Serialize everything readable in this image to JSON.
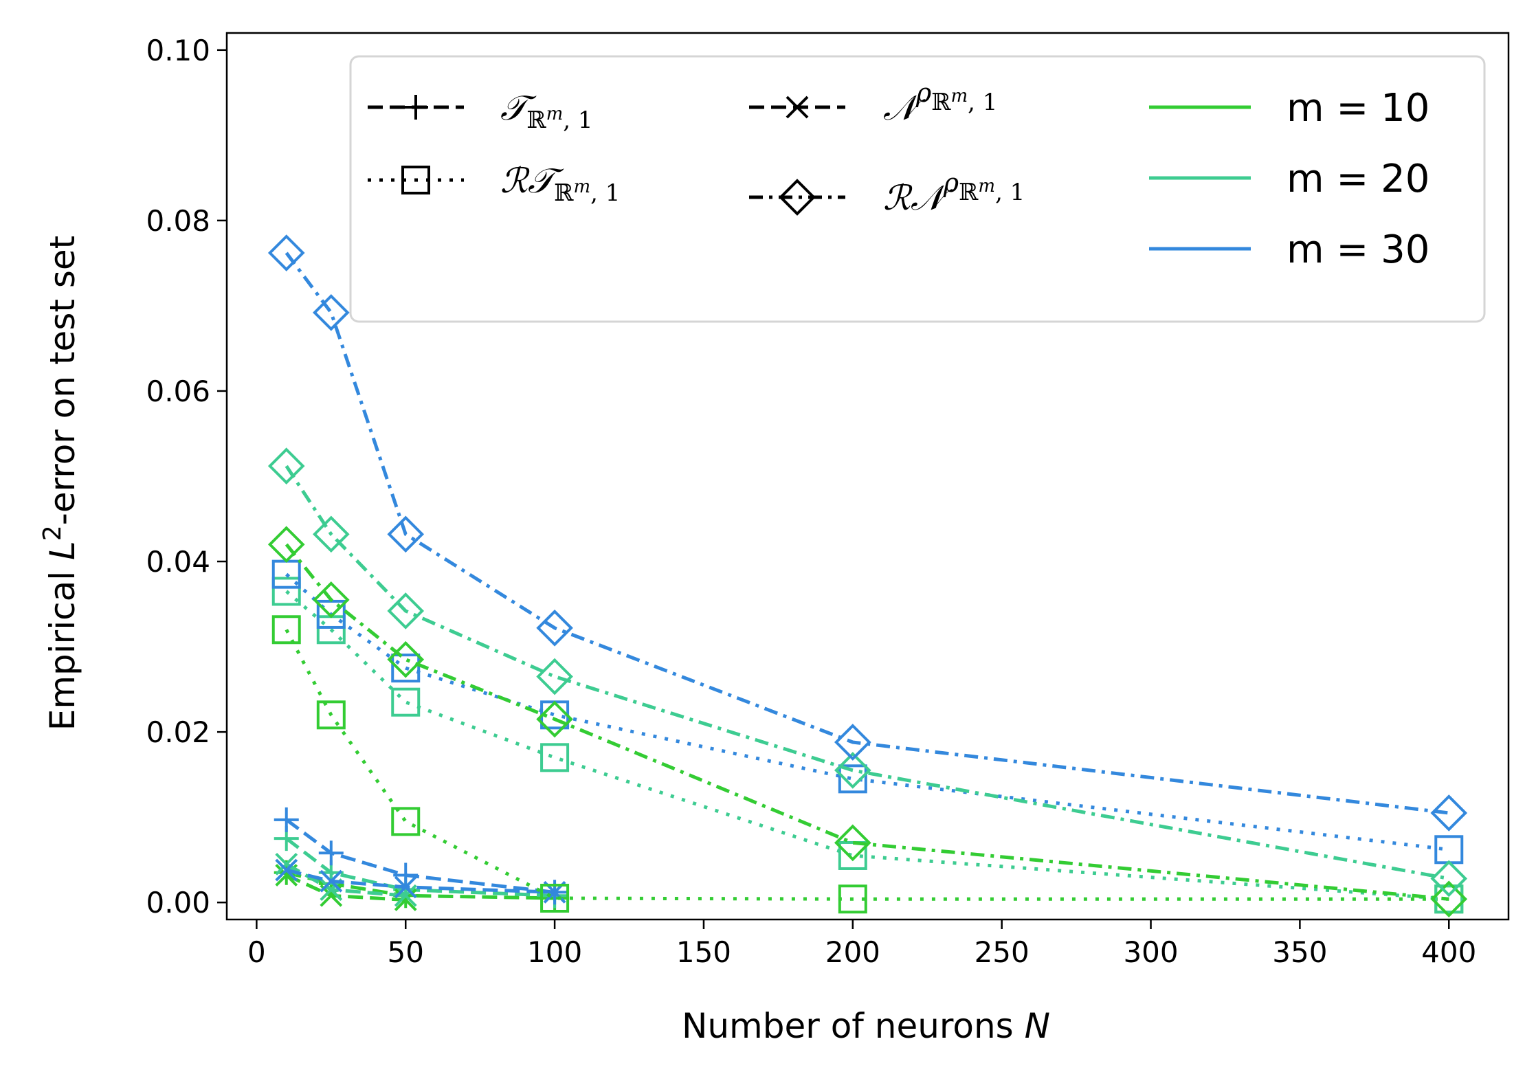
{
  "chart_data": {
    "type": "line",
    "xlabel": "Number of neurons",
    "xlabel_var": "N",
    "ylabel_pre": "Empirical ",
    "ylabel_var": "L",
    "ylabel_sup": "2",
    "ylabel_post": "-error on test set",
    "xlim": [
      -10,
      420
    ],
    "ylim": [
      -0.002,
      0.102
    ],
    "xticks": [
      0,
      50,
      100,
      150,
      200,
      250,
      300,
      350,
      400
    ],
    "yticks": [
      0.0,
      0.02,
      0.04,
      0.06,
      0.08,
      0.1
    ],
    "ytick_labels": [
      "0.00",
      "0.02",
      "0.04",
      "0.06",
      "0.08",
      "0.10"
    ],
    "legend_position": "top-right",
    "grid": false,
    "colors": {
      "m10": "#33cc33",
      "m20": "#3dcc91",
      "m30": "#3388dd"
    },
    "method_legend": [
      {
        "key": "T",
        "style": "dashed",
        "marker": "plus",
        "base": "𝒯",
        "sub": "ℝ",
        "subsup": "m",
        "subtail": ", 1",
        "sup": ""
      },
      {
        "key": "RT",
        "style": "dotted",
        "marker": "square",
        "base": "ℛ𝒯",
        "sub": "ℝ",
        "subsup": "m",
        "subtail": ", 1",
        "sup": ""
      },
      {
        "key": "N",
        "style": "dashed",
        "marker": "x",
        "base": "𝒩",
        "sub": "ℝ",
        "subsup": "m",
        "subtail": ", 1",
        "sup": "ρ"
      },
      {
        "key": "RN",
        "style": "dashdot",
        "marker": "diamond",
        "base": "ℛ𝒩",
        "sub": "ℝ",
        "subsup": "m",
        "subtail": ", 1",
        "sup": "ρ"
      }
    ],
    "m_legend": [
      {
        "label": "m = 10",
        "color": "#33cc33"
      },
      {
        "label": "m = 20",
        "color": "#3dcc91"
      },
      {
        "label": "m = 30",
        "color": "#3388dd"
      }
    ],
    "series": [
      {
        "method": "T",
        "m": 10,
        "color": "#33cc33",
        "x": [
          10,
          25,
          50,
          100
        ],
        "y": [
          0.0035,
          0.0022,
          0.0008,
          0.0005
        ]
      },
      {
        "method": "T",
        "m": 20,
        "color": "#3dcc91",
        "x": [
          10,
          25,
          50,
          100
        ],
        "y": [
          0.0075,
          0.0035,
          0.0015,
          0.0008
        ]
      },
      {
        "method": "T",
        "m": 30,
        "color": "#3388dd",
        "x": [
          10,
          25,
          50,
          100
        ],
        "y": [
          0.0097,
          0.0058,
          0.0032,
          0.0012
        ]
      },
      {
        "method": "N",
        "m": 10,
        "color": "#33cc33",
        "x": [
          10,
          25,
          50
        ],
        "y": [
          0.0032,
          0.0008,
          0.0003
        ]
      },
      {
        "method": "N",
        "m": 20,
        "color": "#3dcc91",
        "x": [
          10,
          25,
          50
        ],
        "y": [
          0.0045,
          0.0015,
          0.0008
        ]
      },
      {
        "method": "N",
        "m": 30,
        "color": "#3388dd",
        "x": [
          10,
          25,
          50,
          100
        ],
        "y": [
          0.0038,
          0.0025,
          0.0018,
          0.0012
        ]
      },
      {
        "method": "RT",
        "m": 10,
        "color": "#33cc33",
        "x": [
          10,
          25,
          50,
          100,
          200,
          400
        ],
        "y": [
          0.032,
          0.022,
          0.0095,
          0.0005,
          0.0004,
          0.0004
        ]
      },
      {
        "method": "RT",
        "m": 20,
        "color": "#3dcc91",
        "x": [
          10,
          25,
          50,
          100,
          200,
          400
        ],
        "y": [
          0.0365,
          0.032,
          0.0235,
          0.017,
          0.0055,
          0.0004
        ]
      },
      {
        "method": "RT",
        "m": 30,
        "color": "#3388dd",
        "x": [
          10,
          25,
          50,
          100,
          200,
          400
        ],
        "y": [
          0.0385,
          0.0338,
          0.0275,
          0.022,
          0.0145,
          0.0062
        ]
      },
      {
        "method": "RN",
        "m": 10,
        "color": "#33cc33",
        "x": [
          10,
          25,
          50,
          100,
          200,
          400
        ],
        "y": [
          0.042,
          0.0355,
          0.0285,
          0.0215,
          0.007,
          0.0004
        ]
      },
      {
        "method": "RN",
        "m": 20,
        "color": "#3dcc91",
        "x": [
          10,
          25,
          50,
          100,
          200,
          400
        ],
        "y": [
          0.0512,
          0.0432,
          0.0342,
          0.0265,
          0.0155,
          0.0028
        ]
      },
      {
        "method": "RN",
        "m": 30,
        "color": "#3388dd",
        "x": [
          10,
          25,
          50,
          100,
          200,
          400
        ],
        "y": [
          0.0762,
          0.0692,
          0.0432,
          0.0322,
          0.0188,
          0.0105
        ]
      }
    ]
  }
}
